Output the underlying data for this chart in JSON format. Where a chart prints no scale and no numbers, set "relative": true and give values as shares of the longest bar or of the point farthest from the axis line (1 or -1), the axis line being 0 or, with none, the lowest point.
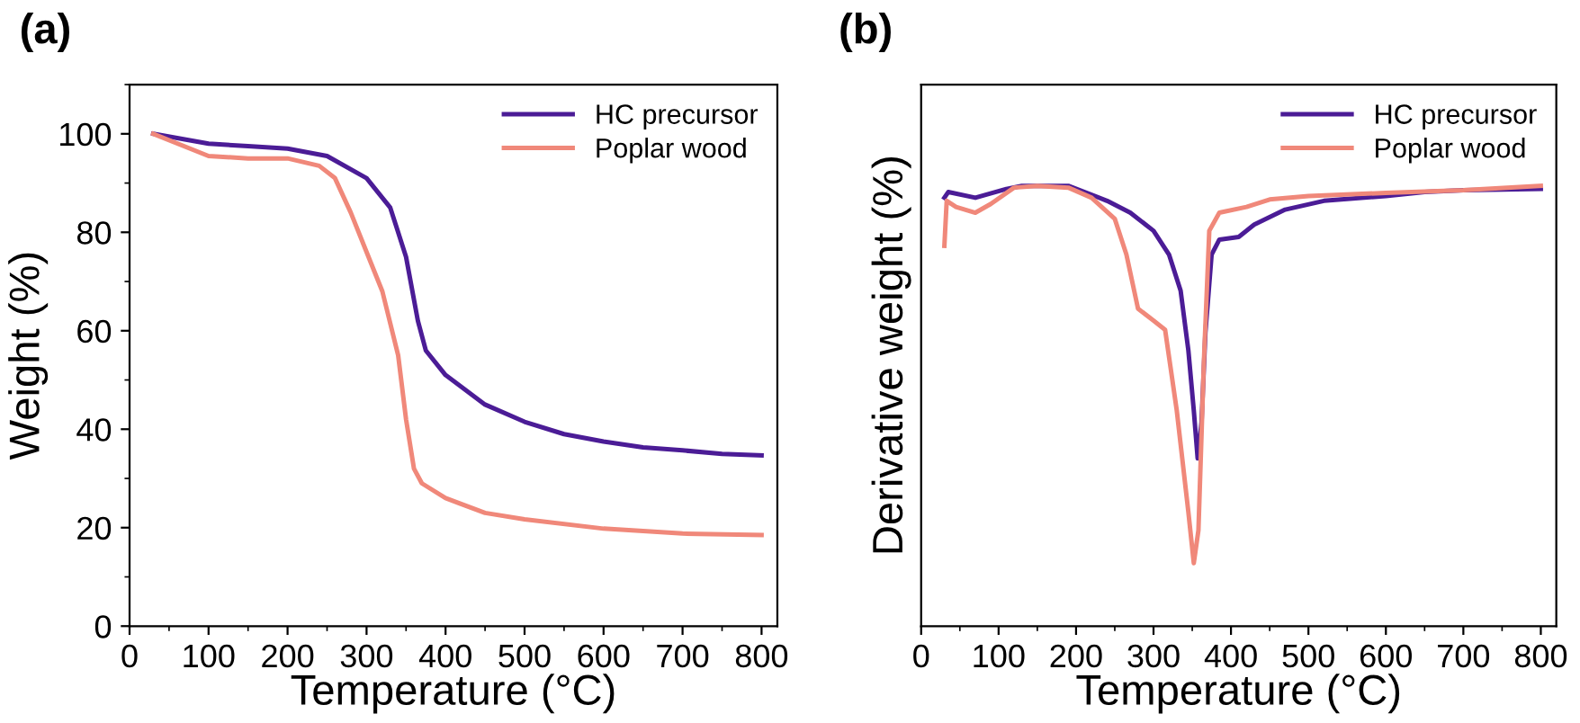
{
  "chart_data": [
    {
      "type": "line",
      "title": "(a)",
      "xlabel": "Temperature (°C)",
      "ylabel": "Weight (%)",
      "xlim": [
        0,
        820
      ],
      "ylim": [
        0,
        110
      ],
      "xticks": [
        0,
        100,
        200,
        300,
        400,
        500,
        600,
        700,
        800
      ],
      "yticks": [
        0,
        20,
        40,
        60,
        80,
        100
      ],
      "legend": "top right",
      "grid": false,
      "series": [
        {
          "name": "HC precursor",
          "color": "#4b1c96",
          "x": [
            30,
            100,
            150,
            200,
            250,
            300,
            330,
            350,
            365,
            375,
            400,
            450,
            500,
            550,
            600,
            650,
            700,
            750,
            800
          ],
          "values": [
            100,
            98,
            97.5,
            97,
            95.5,
            91,
            85,
            75,
            62,
            56,
            51,
            45,
            41.5,
            39,
            37.5,
            36.3,
            35.7,
            35,
            34.7
          ]
        },
        {
          "name": "Poplar wood",
          "color": "#f0887a",
          "x": [
            30,
            100,
            150,
            200,
            240,
            260,
            280,
            300,
            320,
            340,
            350,
            360,
            370,
            400,
            450,
            500,
            600,
            700,
            800
          ],
          "values": [
            100,
            95.5,
            95,
            95,
            93.5,
            91,
            84,
            76,
            68,
            55,
            42,
            32,
            29,
            26,
            23,
            21.7,
            19.8,
            18.8,
            18.5
          ]
        }
      ]
    },
    {
      "type": "line",
      "title": "(b)",
      "xlabel": "Temperature (°C)",
      "ylabel": "Derivative weight (%)",
      "relative": true,
      "tick_labels": "x",
      "xlim": [
        0,
        820
      ],
      "xticks": [
        0,
        100,
        200,
        300,
        400,
        500,
        600,
        700,
        800
      ],
      "legend": "top right",
      "grid": false,
      "series": [
        {
          "name": "HC precursor",
          "color": "#4b1c96",
          "x": [
            30,
            35,
            70,
            110,
            130,
            190,
            220,
            240,
            270,
            300,
            320,
            335,
            345,
            352,
            357,
            362,
            367,
            375,
            385,
            410,
            430,
            470,
            520,
            600,
            650,
            700,
            800
          ],
          "values": [
            0.973,
            0.986,
            0.973,
            0.993,
            1.0,
            1.0,
            0.98,
            0.966,
            0.939,
            0.898,
            0.844,
            0.762,
            0.626,
            0.49,
            0.381,
            0.463,
            0.667,
            0.844,
            0.878,
            0.884,
            0.912,
            0.946,
            0.966,
            0.977,
            0.986,
            0.99,
            0.993
          ]
        },
        {
          "name": "Poplar wood",
          "color": "#f0887a",
          "x": [
            30,
            33,
            45,
            70,
            90,
            120,
            150,
            190,
            220,
            250,
            265,
            280,
            300,
            315,
            330,
            345,
            352,
            358,
            365,
            372,
            385,
            420,
            450,
            500,
            600,
            700,
            800
          ],
          "values": [
            0.864,
            0.966,
            0.952,
            0.939,
            0.959,
            0.996,
            1.0,
            0.996,
            0.973,
            0.925,
            0.844,
            0.721,
            0.694,
            0.673,
            0.49,
            0.259,
            0.143,
            0.218,
            0.599,
            0.898,
            0.939,
            0.952,
            0.969,
            0.977,
            0.984,
            0.99,
            1.0
          ]
        }
      ]
    }
  ]
}
